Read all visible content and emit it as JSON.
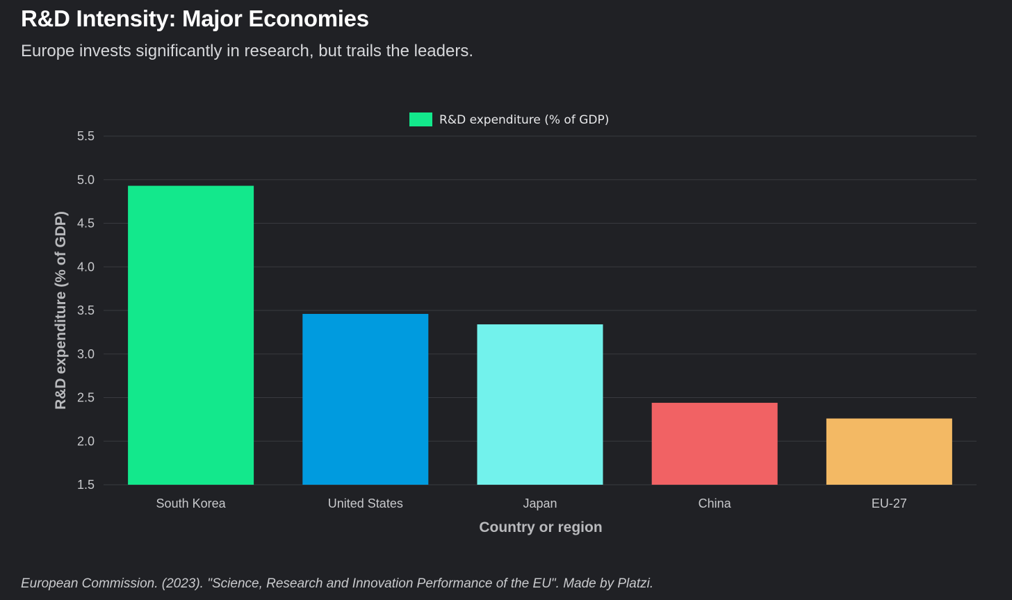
{
  "header": {
    "title": "R&D Intensity: Major Economies",
    "subtitle": "Europe invests significantly in research, but trails the leaders."
  },
  "footer": {
    "source": "European Commission. (2023). \"Science, Research and Innovation Performance of the EU\". Made by Platzi."
  },
  "chart_data": {
    "type": "bar",
    "title": "R&D Intensity: Major Economies",
    "subtitle": "Europe invests significantly in research, but trails the leaders.",
    "categories": [
      "South Korea",
      "United States",
      "Japan",
      "China",
      "EU-27"
    ],
    "series": [
      {
        "name": "R&D expenditure (% of GDP)",
        "values": [
          4.93,
          3.46,
          3.34,
          2.44,
          2.26
        ]
      }
    ],
    "bar_colors": [
      "#13e88c",
      "#009bdf",
      "#72f2ec",
      "#f16264",
      "#f3b964"
    ],
    "legend": {
      "label": "R&D expenditure (% of GDP)",
      "color": "#13e88c",
      "placement": "top-center"
    },
    "xlabel": "Country or region",
    "ylabel": "R&D expenditure (% of GDP)",
    "ylim": [
      1.5,
      5.5
    ],
    "yticks": [
      "1.5",
      "2.0",
      "2.5",
      "3.0",
      "3.5",
      "4.0",
      "4.5",
      "5.0",
      "5.5"
    ],
    "grid": true
  }
}
